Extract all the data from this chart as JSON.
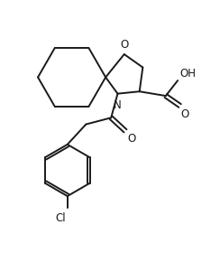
{
  "bg_color": "#ffffff",
  "line_color": "#1a1a1a",
  "line_width": 1.4,
  "figsize": [
    2.44,
    2.8
  ],
  "dpi": 100,
  "xlim": [
    0,
    10
  ],
  "ylim": [
    0,
    11.5
  ]
}
